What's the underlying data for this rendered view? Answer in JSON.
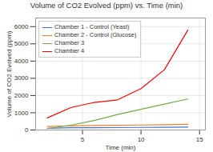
{
  "chart_data": {
    "type": "line",
    "title": "Volume of CO2 Evolved (ppm) vs. Time (min)",
    "xlabel": "Time (min)",
    "ylabel": "Volume of CO2 Evolved (ppm)",
    "x": [
      2,
      4,
      6,
      8,
      10,
      12,
      14
    ],
    "series": [
      {
        "name": "Chamber 1 - Control (Yeast)",
        "color": "#4472C4",
        "values": [
          100,
          130,
          130,
          140,
          150,
          155,
          165
        ]
      },
      {
        "name": "Chamber 2 - Control (Glucose)",
        "color": "#ED7D31",
        "values": [
          200,
          240,
          260,
          275,
          290,
          310,
          330
        ]
      },
      {
        "name": "Chamber 3",
        "color": "#70AD47",
        "values": [
          80,
          280,
          550,
          900,
          1200,
          1500,
          1800
        ]
      },
      {
        "name": "Chamber 4",
        "color": "#FF0000",
        "values": [
          700,
          1300,
          1600,
          1750,
          2400,
          3500,
          5800
        ]
      }
    ],
    "xlim": [
      1,
      15.5
    ],
    "ylim": [
      0,
      6500
    ],
    "xticks": [
      5,
      10,
      15
    ],
    "yticks": [
      0,
      1000,
      2000,
      3000,
      4000,
      5000,
      6000
    ],
    "grid": true,
    "legend": "upper left",
    "marker": "plus"
  }
}
